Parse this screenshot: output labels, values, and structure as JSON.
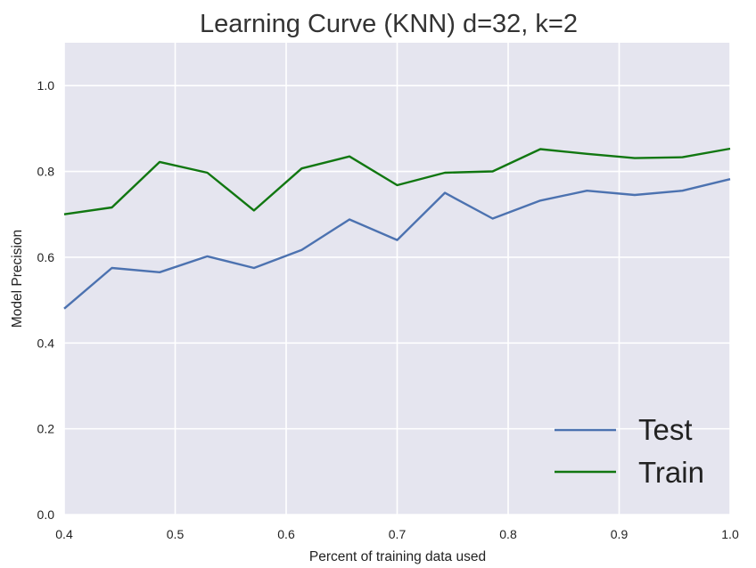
{
  "chart_data": {
    "type": "line",
    "title": "Learning Curve (KNN) d=32,  k=2",
    "xlabel": "Percent of training data used",
    "ylabel": "Model Precision",
    "xlim": [
      0.4,
      1.0
    ],
    "ylim": [
      0.0,
      1.1
    ],
    "xticks": [
      0.4,
      0.5,
      0.6,
      0.7,
      0.8,
      0.9,
      1.0
    ],
    "xtick_labels": [
      "0.4",
      "0.5",
      "0.6",
      "0.7",
      "0.8",
      "0.9",
      "1.0"
    ],
    "yticks": [
      0.0,
      0.2,
      0.4,
      0.6,
      0.8,
      1.0
    ],
    "ytick_labels": [
      "0.0",
      "0.2",
      "0.4",
      "0.6",
      "0.8",
      "1.0"
    ],
    "grid": true,
    "legend_position": "lower-right",
    "background_color": "#e5e5ef",
    "x": [
      0.4,
      0.443,
      0.486,
      0.529,
      0.571,
      0.614,
      0.657,
      0.7,
      0.743,
      0.786,
      0.829,
      0.871,
      0.914,
      0.957,
      1.0
    ],
    "series": [
      {
        "name": "Test",
        "color": "#4c72b0",
        "values": [
          0.48,
          0.575,
          0.565,
          0.602,
          0.575,
          0.617,
          0.688,
          0.64,
          0.75,
          0.69,
          0.732,
          0.755,
          0.745,
          0.755,
          0.782
        ]
      },
      {
        "name": "Train",
        "color": "#117711",
        "values": [
          0.7,
          0.716,
          0.822,
          0.797,
          0.709,
          0.807,
          0.835,
          0.768,
          0.797,
          0.8,
          0.852,
          0.841,
          0.831,
          0.833,
          0.853
        ]
      }
    ]
  }
}
